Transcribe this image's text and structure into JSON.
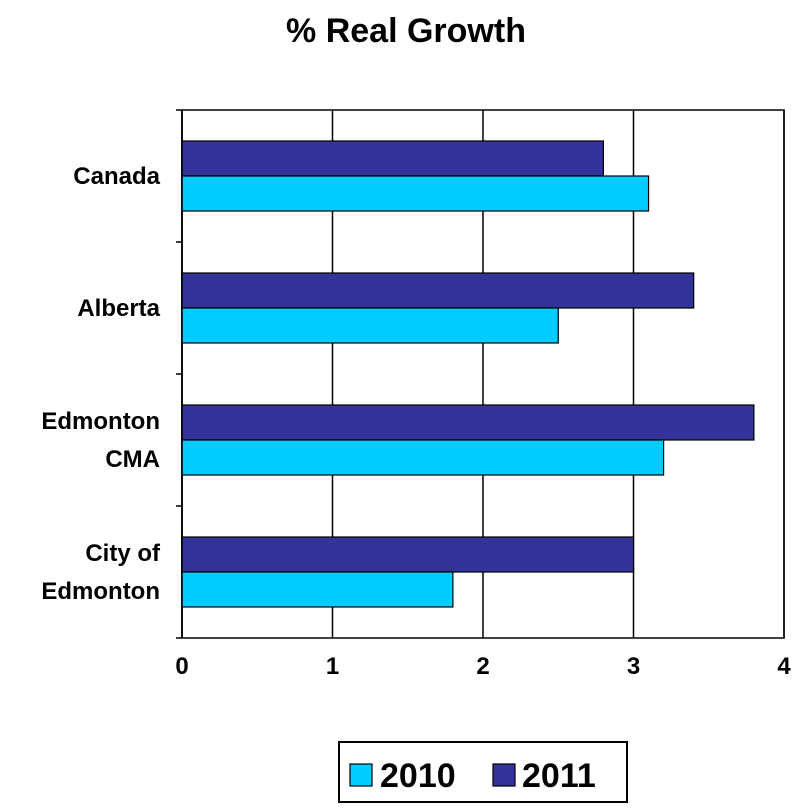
{
  "chart_data": {
    "type": "bar",
    "orientation": "horizontal",
    "title": "% Real Growth",
    "xlabel": "",
    "ylabel": "",
    "categories": [
      [
        "Canada"
      ],
      [
        "Alberta"
      ],
      [
        "Edmonton",
        "CMA"
      ],
      [
        "City of",
        "Edmonton"
      ]
    ],
    "series": [
      {
        "name": "2010",
        "values": [
          3.1,
          2.5,
          3.2,
          1.8
        ],
        "color": "#00CCFF"
      },
      {
        "name": "2011",
        "values": [
          2.8,
          3.4,
          3.8,
          3.0
        ],
        "color": "#333399"
      }
    ],
    "xlim": [
      0,
      4
    ],
    "xticks": [
      "0",
      "1",
      "2",
      "3",
      "4"
    ],
    "grid": "vertical",
    "legend": "bottom"
  }
}
